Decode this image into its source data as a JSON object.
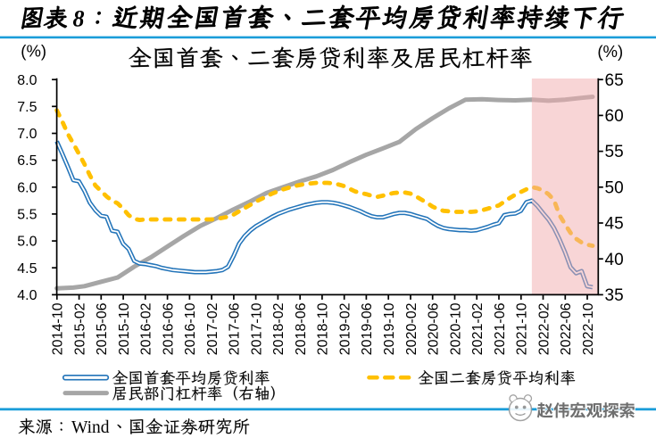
{
  "header": {
    "label": "图表",
    "number": "8",
    "separator": "：",
    "title": "近期全国首套、二套平均房贷利率持续下行",
    "text_color": "#000000",
    "rule_color": "#1B9DD9"
  },
  "chart": {
    "title": "全国首套、二套房贷利率及居民杠杆率",
    "left_axis_unit": "(%)",
    "right_axis_unit": "(%)"
  },
  "legend": [
    {
      "label": "全国首套平均房贷利率",
      "swatch": "blue-double-line",
      "color": "#2374B9"
    },
    {
      "label": "全国二套房贷平均利率",
      "swatch": "yellow-dashed-line",
      "color": "#FFC000"
    },
    {
      "label": "居民部门杠杆率（右轴）",
      "swatch": "gray-thick-line",
      "color": "#A6A6A6"
    }
  ],
  "source": {
    "prefix": "来源：",
    "vendor": "Wind",
    "suffix": "、国金证券研究所",
    "full_text": "来源：Wind、国金证券研究所"
  },
  "watermark": {
    "text": "赵伟宏观探索",
    "logo": "sketch-logo-icon"
  },
  "chart_data": {
    "type": "line",
    "x": [
      "2014-10",
      "2014-11",
      "2014-12",
      "2015-01",
      "2015-02",
      "2015-03",
      "2015-04",
      "2015-05",
      "2015-06",
      "2015-07",
      "2015-08",
      "2015-09",
      "2015-10",
      "2015-11",
      "2015-12",
      "2016-01",
      "2016-02",
      "2016-03",
      "2016-04",
      "2016-05",
      "2016-06",
      "2016-07",
      "2016-08",
      "2016-09",
      "2016-10",
      "2016-11",
      "2016-12",
      "2017-01",
      "2017-02",
      "2017-03",
      "2017-04",
      "2017-05",
      "2017-06",
      "2017-07",
      "2017-08",
      "2017-09",
      "2017-10",
      "2017-11",
      "2017-12",
      "2018-01",
      "2018-02",
      "2018-03",
      "2018-04",
      "2018-05",
      "2018-06",
      "2018-07",
      "2018-08",
      "2018-09",
      "2018-10",
      "2018-11",
      "2018-12",
      "2019-01",
      "2019-02",
      "2019-03",
      "2019-04",
      "2019-05",
      "2019-06",
      "2019-07",
      "2019-08",
      "2019-09",
      "2019-10",
      "2019-11",
      "2019-12",
      "2020-01",
      "2020-02",
      "2020-03",
      "2020-04",
      "2020-05",
      "2020-06",
      "2020-07",
      "2020-08",
      "2020-09",
      "2020-10",
      "2020-11",
      "2020-12",
      "2021-01",
      "2021-02",
      "2021-03",
      "2021-04",
      "2021-05",
      "2021-06",
      "2021-07",
      "2021-08",
      "2021-09",
      "2021-10",
      "2021-11",
      "2021-12",
      "2022-01",
      "2022-02",
      "2022-03",
      "2022-04",
      "2022-05",
      "2022-06",
      "2022-07",
      "2022-08",
      "2022-09",
      "2022-10",
      "2022-11"
    ],
    "x_tick_labels": [
      "2014-10",
      "2015-02",
      "2015-06",
      "2015-10",
      "2016-02",
      "2016-06",
      "2016-10",
      "2017-02",
      "2017-06",
      "2017-10",
      "2018-02",
      "2018-06",
      "2018-10",
      "2019-02",
      "2019-06",
      "2019-10",
      "2020-02",
      "2020-06",
      "2020-10",
      "2021-02",
      "2021-06",
      "2021-10",
      "2022-02",
      "2022-06",
      "2022-10"
    ],
    "series": [
      {
        "name": "全国首套平均房贷利率",
        "axis": "left",
        "style": "double-line",
        "color": "#2374B9",
        "values": [
          6.85,
          6.62,
          6.38,
          6.13,
          6.11,
          5.93,
          5.71,
          5.57,
          5.47,
          5.45,
          5.19,
          5.17,
          4.95,
          4.85,
          4.63,
          4.58,
          4.57,
          4.55,
          4.53,
          4.5,
          4.48,
          4.46,
          4.45,
          4.44,
          4.43,
          4.42,
          4.42,
          4.42,
          4.43,
          4.44,
          4.46,
          4.52,
          4.72,
          4.95,
          5.09,
          5.19,
          5.27,
          5.33,
          5.39,
          5.45,
          5.5,
          5.54,
          5.58,
          5.61,
          5.64,
          5.67,
          5.69,
          5.71,
          5.72,
          5.72,
          5.71,
          5.69,
          5.66,
          5.63,
          5.59,
          5.55,
          5.5,
          5.46,
          5.44,
          5.44,
          5.47,
          5.5,
          5.52,
          5.52,
          5.5,
          5.47,
          5.44,
          5.41,
          5.34,
          5.28,
          5.24,
          5.22,
          5.21,
          5.2,
          5.2,
          5.19,
          5.2,
          5.23,
          5.26,
          5.3,
          5.33,
          5.48,
          5.5,
          5.51,
          5.56,
          5.72,
          5.75,
          5.65,
          5.52,
          5.4,
          5.24,
          5.03,
          4.79,
          4.51,
          4.4,
          4.44,
          4.16,
          4.14
        ]
      },
      {
        "name": "全国二套房贷平均利率",
        "axis": "left",
        "style": "dashed",
        "color": "#FFC000",
        "values": [
          7.43,
          7.22,
          6.99,
          6.81,
          6.62,
          6.43,
          6.22,
          6.03,
          5.93,
          5.83,
          5.75,
          5.7,
          5.6,
          5.48,
          5.41,
          5.39,
          5.4,
          5.4,
          5.4,
          5.4,
          5.4,
          5.4,
          5.4,
          5.4,
          5.4,
          5.4,
          5.4,
          5.4,
          5.4,
          5.41,
          5.43,
          5.45,
          5.49,
          5.55,
          5.61,
          5.67,
          5.73,
          5.78,
          5.83,
          5.88,
          5.92,
          5.96,
          5.99,
          6.02,
          6.04,
          6.06,
          6.07,
          6.08,
          6.08,
          6.08,
          6.07,
          6.05,
          6.02,
          5.97,
          5.92,
          5.89,
          5.87,
          5.84,
          5.82,
          5.84,
          5.87,
          5.89,
          5.9,
          5.9,
          5.88,
          5.83,
          5.77,
          5.71,
          5.64,
          5.59,
          5.56,
          5.55,
          5.54,
          5.54,
          5.54,
          5.54,
          5.55,
          5.57,
          5.6,
          5.63,
          5.66,
          5.73,
          5.8,
          5.86,
          5.91,
          5.96,
          6.0,
          5.98,
          5.94,
          5.87,
          5.76,
          5.48,
          5.31,
          5.15,
          5.04,
          4.97,
          4.93,
          4.91
        ]
      },
      {
        "name": "居民部门杠杆率（右轴）",
        "axis": "right",
        "style": "thick-solid",
        "color": "#A6A6A6",
        "points": [
          [
            0,
            35.9
          ],
          [
            3,
            36.0
          ],
          [
            5,
            36.2
          ],
          [
            8,
            36.8
          ],
          [
            11,
            37.4
          ],
          [
            14,
            38.9
          ],
          [
            17,
            40.2
          ],
          [
            20,
            41.7
          ],
          [
            23,
            43.2
          ],
          [
            26,
            44.6
          ],
          [
            29,
            45.7
          ],
          [
            32,
            46.9
          ],
          [
            35,
            48.0
          ],
          [
            38,
            49.2
          ],
          [
            41,
            50.0
          ],
          [
            44,
            50.8
          ],
          [
            47,
            51.5
          ],
          [
            50,
            52.4
          ],
          [
            53,
            53.5
          ],
          [
            56,
            54.5
          ],
          [
            59,
            55.4
          ],
          [
            62,
            56.3
          ],
          [
            65,
            58.1
          ],
          [
            68,
            59.6
          ],
          [
            71,
            61.0
          ],
          [
            74,
            62.2
          ],
          [
            77,
            62.25
          ],
          [
            80,
            62.15
          ],
          [
            83,
            62.1
          ],
          [
            86,
            62.2
          ],
          [
            89,
            62.05
          ],
          [
            92,
            62.2
          ],
          [
            95,
            62.45
          ],
          [
            97,
            62.6
          ]
        ]
      }
    ],
    "left_axis": {
      "min": 4.0,
      "max": 8.0,
      "step": 0.5,
      "tick_labels": [
        "8.0",
        "7.5",
        "7.0",
        "6.5",
        "6.0",
        "5.5",
        "5.0",
        "4.5",
        "4.0"
      ],
      "unit": "(%)"
    },
    "right_axis": {
      "min": 35,
      "max": 65,
      "step": 5,
      "tick_labels": [
        "65",
        "60",
        "55",
        "50",
        "45",
        "40",
        "35"
      ],
      "unit": "(%)"
    },
    "highlight_region": {
      "from": "2021-12",
      "to": "end",
      "color": "rgba(242,171,173,0.50)"
    },
    "grid": false,
    "legend_position": "bottom"
  }
}
